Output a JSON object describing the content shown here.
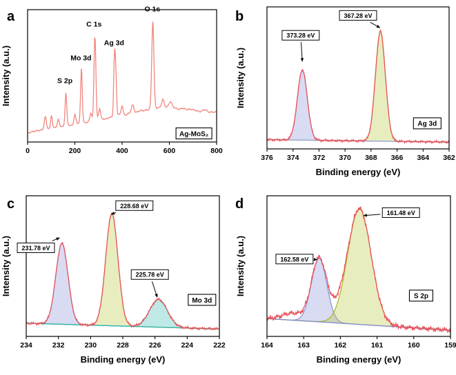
{
  "figure": {
    "background": "#ffffff",
    "axis_color": "#000000"
  },
  "chart_data": [
    {
      "id": "a",
      "letter": "a",
      "type": "line",
      "xlabel": "",
      "ylabel": "Intensity (a.u.)",
      "xlim": [
        0,
        800
      ],
      "x_ticks": [
        0,
        200,
        400,
        600,
        800
      ],
      "ymax": 1.12,
      "grid": false,
      "line_color": "#f2857d",
      "noise": 0.012,
      "background_points": [
        [
          0,
          0.06
        ],
        [
          60,
          0.09
        ],
        [
          150,
          0.12
        ],
        [
          250,
          0.16
        ],
        [
          350,
          0.2
        ],
        [
          450,
          0.25
        ],
        [
          520,
          0.28
        ],
        [
          560,
          0.3
        ],
        [
          620,
          0.29
        ],
        [
          700,
          0.27
        ],
        [
          800,
          0.25
        ]
      ],
      "peaks": [
        {
          "center": 75,
          "height": 0.1,
          "sigma": 4
        },
        {
          "center": 101,
          "height": 0.13,
          "sigma": 3.5
        },
        {
          "center": 130,
          "height": 0.06,
          "sigma": 4
        },
        {
          "center": 162,
          "height": 0.3,
          "sigma": 3.5
        },
        {
          "center": 200,
          "height": 0.09,
          "sigma": 4
        },
        {
          "center": 228,
          "height": 0.5,
          "sigma": 3.5
        },
        {
          "center": 268,
          "height": 0.08,
          "sigma": 4
        },
        {
          "center": 285,
          "height": 0.78,
          "sigma": 4
        },
        {
          "center": 305,
          "height": 0.1,
          "sigma": 4
        },
        {
          "center": 368,
          "height": 0.58,
          "sigma": 3.5
        },
        {
          "center": 374,
          "height": 0.3,
          "sigma": 3
        },
        {
          "center": 400,
          "height": 0.09,
          "sigma": 4
        },
        {
          "center": 445,
          "height": 0.06,
          "sigma": 5
        },
        {
          "center": 530,
          "height": 0.8,
          "sigma": 4.5
        },
        {
          "center": 573,
          "height": 0.07,
          "sigma": 5
        },
        {
          "center": 605,
          "height": 0.05,
          "sigma": 6
        }
      ],
      "peak_labels": [
        {
          "text": "S 2p",
          "x": 158,
          "v": 0.52
        },
        {
          "text": "Mo 3d",
          "x": 226,
          "v": 0.73
        },
        {
          "text": "C 1s",
          "x": 281,
          "v": 1.04
        },
        {
          "text": "Ag 3d",
          "x": 366,
          "v": 0.87
        },
        {
          "text": "O 1s",
          "x": 528,
          "v": 1.18
        }
      ],
      "corner_label": {
        "text": "Ag-MoS₂",
        "fx": 0.88,
        "fy": 0.935
      }
    },
    {
      "id": "b",
      "letter": "b",
      "type": "line",
      "xlabel": "Binding energy (eV)",
      "ylabel": "Intensity (a.u.)",
      "xlim": [
        376,
        362
      ],
      "x_ticks": [
        376,
        374,
        372,
        370,
        368,
        366,
        364,
        362
      ],
      "ymax": 1.12,
      "grid": false,
      "raw_color": "#e8545c",
      "noise": 0.012,
      "baseline": {
        "left": 0.055,
        "right": 0.035,
        "color": "#98a0da"
      },
      "components": [
        {
          "center": 373.28,
          "height": 0.6,
          "sigma": 0.38,
          "stroke": "#8a90d4",
          "fill": "rgba(146,152,218,0.35)"
        },
        {
          "center": 367.28,
          "height": 0.94,
          "sigma": 0.38,
          "stroke": "#a9b51f",
          "fill": "rgba(180,195,45,0.30)"
        }
      ],
      "annotations": [
        {
          "text": "373.28 eV",
          "fx": 0.185,
          "fy": 0.2,
          "tx": 373.28,
          "tv": 0.72
        },
        {
          "text": "367.28 eV",
          "fx": 0.5,
          "fy": 0.06,
          "tx": 367.28,
          "tv": 1.01
        }
      ],
      "corner_label": {
        "text": "Ag 3d",
        "fx": 0.88,
        "fy": 0.82
      }
    },
    {
      "id": "c",
      "letter": "c",
      "type": "line",
      "xlabel": "Binding energy (eV)",
      "ylabel": "Intensity (a.u.)",
      "xlim": [
        234,
        222
      ],
      "x_ticks": [
        234,
        232,
        230,
        228,
        226,
        224,
        222
      ],
      "ymax": 1.12,
      "grid": false,
      "raw_color": "#e8545c",
      "noise": 0.013,
      "baseline": {
        "left": 0.09,
        "right": 0.04,
        "color": "#2ab5ac"
      },
      "components": [
        {
          "center": 231.78,
          "height": 0.7,
          "sigma": 0.38,
          "stroke": "#8a90d4",
          "fill": "rgba(146,152,218,0.35)"
        },
        {
          "center": 228.68,
          "height": 0.97,
          "sigma": 0.38,
          "stroke": "#a9b51f",
          "fill": "rgba(180,195,45,0.30)"
        },
        {
          "center": 225.78,
          "height": 0.24,
          "sigma": 0.55,
          "stroke": "#2ab5ac",
          "fill": "rgba(42,181,172,0.30)"
        }
      ],
      "annotations": [
        {
          "text": "231.78 eV",
          "fx": 0.05,
          "fy": 0.37,
          "tx": 231.9,
          "tv": 0.83
        },
        {
          "text": "228.68 eV",
          "fx": 0.56,
          "fy": 0.07,
          "tx": 228.75,
          "tv": 1.03
        },
        {
          "text": "225.78 eV",
          "fx": 0.64,
          "fy": 0.56,
          "tx": 225.85,
          "tv": 0.31
        }
      ],
      "corner_label": {
        "text": "Mo 3d",
        "fx": 0.91,
        "fy": 0.74
      }
    },
    {
      "id": "d",
      "letter": "d",
      "type": "line",
      "xlabel": "Binding energy (eV)",
      "ylabel": "Intensity (a.u.)",
      "xlim": [
        164,
        159
      ],
      "x_ticks": [
        164,
        163,
        162,
        161,
        160,
        159
      ],
      "ymax": 1.12,
      "grid": false,
      "raw_color": "#e8545c",
      "noise": 0.026,
      "baseline": {
        "left": 0.13,
        "right": 0.03,
        "color": "#7b86cc"
      },
      "components": [
        {
          "center": 162.58,
          "height": 0.55,
          "sigma": 0.21,
          "stroke": "#8a90d4",
          "fill": "rgba(146,152,218,0.35)"
        },
        {
          "center": 161.48,
          "height": 1.0,
          "sigma": 0.32,
          "stroke": "#a9b51f",
          "fill": "rgba(180,195,45,0.30)"
        }
      ],
      "raw_bumps": [
        {
          "center": 163.3,
          "height": 0.06,
          "sigma": 0.28
        },
        {
          "center": 162.05,
          "height": 0.05,
          "sigma": 0.22
        }
      ],
      "annotations": [
        {
          "text": "162.58 eV",
          "fx": 0.15,
          "fy": 0.45,
          "tx": 162.62,
          "tv": 0.64
        },
        {
          "text": "161.48 eV",
          "fx": 0.73,
          "fy": 0.12,
          "tx": 161.38,
          "tv": 1.02
        }
      ],
      "corner_label": {
        "text": "S 2p",
        "fx": 0.84,
        "fy": 0.71
      }
    }
  ]
}
